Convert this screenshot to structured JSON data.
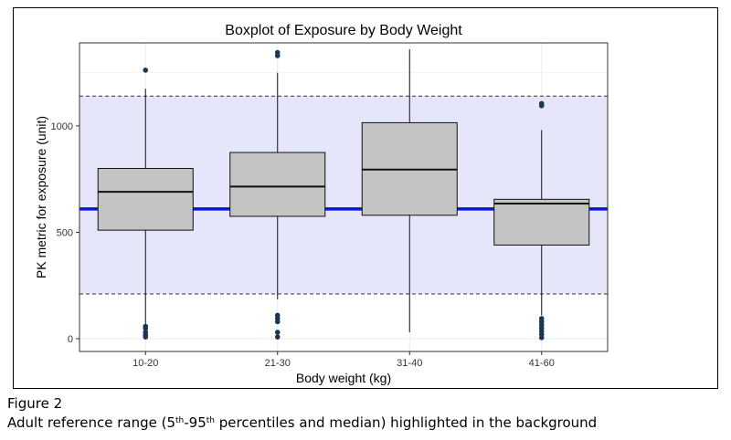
{
  "chart_data": {
    "type": "boxplot",
    "title": "Boxplot of Exposure by Body Weight",
    "xlabel": "Body weight (kg)",
    "ylabel": "PK metric for exposure (unit)",
    "ylim": [
      -60,
      1390
    ],
    "yticks": [
      0,
      500,
      1000
    ],
    "reference": {
      "p5": 210,
      "median": 610,
      "p95": 1140
    },
    "groups": [
      {
        "name": "10-20",
        "whisker_low": 25,
        "q1": 510,
        "median": 690,
        "q3": 800,
        "whisker_high": 1175,
        "outliers": [
          8,
          18,
          30,
          48,
          58,
          1262
        ]
      },
      {
        "name": "21-30",
        "whisker_low": 185,
        "q1": 575,
        "median": 715,
        "q3": 875,
        "whisker_high": 1250,
        "outliers": [
          8,
          30,
          80,
          95,
          110,
          1330,
          1345
        ]
      },
      {
        "name": "31-40",
        "whisker_low": 30,
        "q1": 580,
        "median": 795,
        "q3": 1015,
        "whisker_high": 1360,
        "outliers": []
      },
      {
        "name": "41-60",
        "whisker_low": 110,
        "q1": 440,
        "median": 635,
        "q3": 655,
        "whisker_high": 980,
        "outliers": [
          5,
          20,
          35,
          50,
          65,
          80,
          95,
          1095,
          1105
        ]
      }
    ]
  },
  "caption": {
    "label": "Figure 2",
    "line_prefix": "Adult reference range (5",
    "sup1": "th",
    "dash": "-95",
    "sup2": "th",
    "line_suffix": " percentiles and median) highlighted in the background"
  }
}
